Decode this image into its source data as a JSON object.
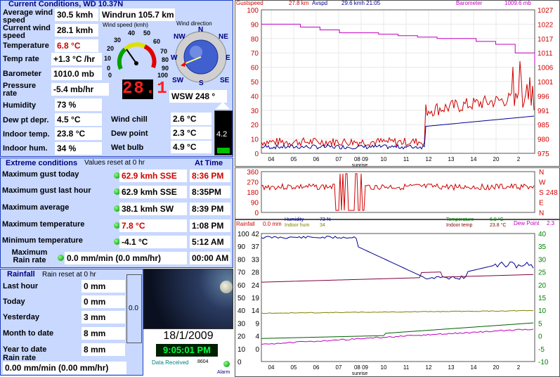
{
  "current": {
    "title": "Current Conditions, WD 10.37N",
    "avg_wind_label": "Average wind speed",
    "avg_wind": "30.5 kmh",
    "windrun": "Windrun 105.7 km",
    "cur_wind_label": "Current wind speed",
    "cur_wind": "28.1 kmh",
    "temp_label": "Temperature",
    "temp": "6.8 °C",
    "temprate_label": "Temp rate",
    "temprate": "+1.3 °C /hr",
    "baro_label": "Barometer",
    "baro": "1010.0 mb",
    "pressrate_label": "Pressure rate",
    "pressrate": "-5.4 mb/hr",
    "humidity_label": "Humidity",
    "humidity": "73 %",
    "dewdep_label": "Dew pt depr.",
    "dewdep": "4.5 °C",
    "indoortemp_label": "Indoor temp.",
    "indoortemp": "23.8 °C",
    "indoorhum_label": "Indoor hum.",
    "indoorhum": "34 %",
    "windchill_label": "Wind chill",
    "windchill": "2.6 °C",
    "dewpoint_label": "Dew point",
    "dewpoint": "2.3 °C",
    "wetbulb_label": "Wet bulb",
    "wetbulb": "4.9 °C",
    "gauge_label": "Wind speed (kmh)",
    "gauge_digital": "28.1",
    "compass_label": "Wind direction",
    "winddir": "WSW 248 °",
    "uv_value": "4.2"
  },
  "extremes": {
    "title": "Extreme conditions",
    "subtitle": "Values reset at 0 hr",
    "at_time": "At Time",
    "rows": [
      {
        "label": "Maximum gust today",
        "value": "62.9 kmh SSE",
        "time": "8:36 PM"
      },
      {
        "label": "Maximum gust last hour",
        "value": "62.9 kmh SSE",
        "time": "8:35PM"
      },
      {
        "label": "Maximum average",
        "value": "38.1 kmh  SW",
        "time": "8:39 PM"
      },
      {
        "label": "Maximum temperature",
        "value": "7.8 °C",
        "time": "1:08 PM"
      },
      {
        "label": "Minimum temperature",
        "value": "-4.1 °C",
        "time": "5:12 AM"
      },
      {
        "label": "Maximum Rain rate",
        "value": "0.0 mm/min (0.0 mm/hr)",
        "time": "00:00 AM"
      }
    ]
  },
  "rainfall": {
    "title": "Rainfall",
    "subtitle": "Rain reset at 0 hr",
    "rows": [
      {
        "label": "Last hour",
        "value": "0 mm"
      },
      {
        "label": "Today",
        "value": "0 mm"
      },
      {
        "label": "Yesterday",
        "value": "3 mm"
      },
      {
        "label": "Month to date",
        "value": "8 mm"
      },
      {
        "label": "Year to date",
        "value": "8 mm"
      }
    ],
    "rate_label": "Rain rate",
    "rate": "0.00 mm/min (0.00 mm/hr)",
    "gauge_value": "0.0"
  },
  "camera": {
    "date": "18/1/2009",
    "time": "9:05:01 PM",
    "data_received_label": "Data Received",
    "data_received": "8604",
    "alarm": "Alarm"
  },
  "graph1": {
    "gust_label": "Gustspeed",
    "gust": "27.8 km",
    "avspd": "Avspd",
    "avspd_val": "29.6 kmh 21:05",
    "baro_label": "Barometer",
    "baro": "1009.6 mb",
    "left_ticks": [
      "100",
      "90",
      "80",
      "70",
      "60",
      "50",
      "40",
      "30",
      "20",
      "10",
      "0"
    ],
    "right_ticks": [
      "1027",
      "1022",
      "1017",
      "1011",
      "1006",
      "1001",
      "996",
      "991",
      "985",
      "980",
      "975"
    ],
    "x_ticks": [
      "04",
      "05",
      "06",
      "07",
      "08 09",
      "10",
      "11",
      "12",
      "13",
      "14",
      "20",
      "2"
    ],
    "sunrise": "sunrise",
    "color_gust": "#d00000",
    "color_avg": "#000090",
    "color_baro": "#c000c0"
  },
  "graph2": {
    "left_ticks": [
      "360",
      "270",
      "180",
      "90",
      "0"
    ],
    "right_labels": [
      "N",
      "W",
      "S",
      "E",
      "N"
    ],
    "current": "248"
  },
  "graph3": {
    "rainfall_label": "Rainfall",
    "rainfall": "0.0 mm",
    "humidity_label": "Humidity",
    "humidity": "73 %",
    "indoorhum_label": "Indoor hum",
    "indoorhum": "34",
    "temp_label": "Temperature",
    "temp": "6.8 °C",
    "indoortemp_label": "Indoor temp",
    "indoortemp": "23.8 °C",
    "dew_label": "Dew Point",
    "dew": "2.3",
    "left_ticks": [
      "100",
      "90",
      "80",
      "70",
      "60",
      "50",
      "40",
      "30",
      "20",
      "10",
      "0"
    ],
    "left_ticks2": [
      "42",
      "37",
      "33",
      "28",
      "24",
      "19",
      "14",
      "9",
      "4",
      "0"
    ],
    "right_ticks": [
      "40",
      "35",
      "30",
      "25",
      "20",
      "15",
      "10",
      "5",
      "0",
      "-5",
      "-10"
    ],
    "x_ticks": [
      "04",
      "05",
      "06",
      "07",
      "08 09",
      "10",
      "11",
      "12",
      "13",
      "14",
      "20",
      "2"
    ],
    "sunrise": "sunrise"
  }
}
